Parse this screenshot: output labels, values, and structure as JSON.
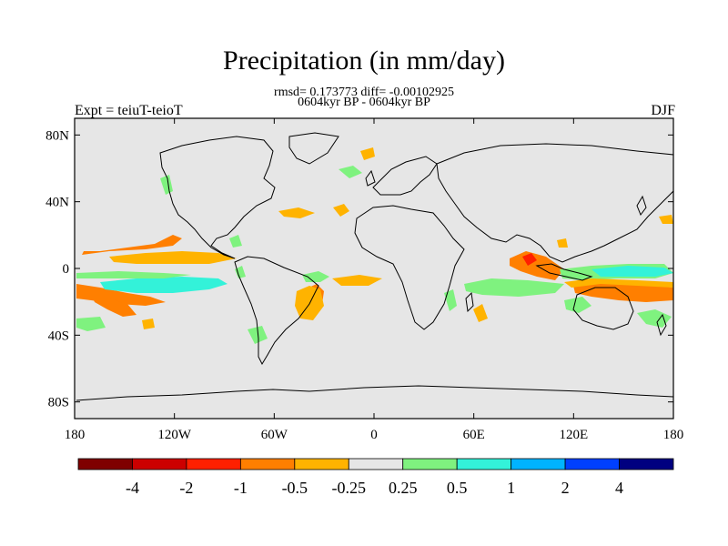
{
  "header": {
    "title": "Precipitation (in mm/day)",
    "stats": "rmsd= 0.173773 diff= -0.00102925",
    "period": "0604kyr BP - 0604kyr BP",
    "expt": "Expt = teiuT-teioT",
    "season": "DJF"
  },
  "axes": {
    "lat_labels": [
      "80N",
      "40N",
      "0",
      "40S",
      "80S"
    ],
    "lat_values": [
      80,
      40,
      0,
      -40,
      -80
    ],
    "lon_labels": [
      "180",
      "120W",
      "60W",
      "0",
      "60E",
      "120E",
      "180"
    ],
    "lon_values": [
      -180,
      -120,
      -60,
      0,
      60,
      120,
      180
    ],
    "lat_range": [
      -90,
      90
    ],
    "lon_range": [
      -180,
      180
    ]
  },
  "colorbar": {
    "labels": [
      "-4",
      "-2",
      "-1",
      "-0.5",
      "-0.25",
      "0.25",
      "0.5",
      "1",
      "2",
      "4"
    ],
    "colors": [
      "#7f0000",
      "#cc0000",
      "#ff2000",
      "#ff7f00",
      "#ffb300",
      "#e6e6e6",
      "#7ff27f",
      "#33f2d9",
      "#00b3ff",
      "#0040ff",
      "#000080"
    ]
  },
  "colors": {
    "ocean": "#e6e6e6",
    "coast": "#000000"
  }
}
